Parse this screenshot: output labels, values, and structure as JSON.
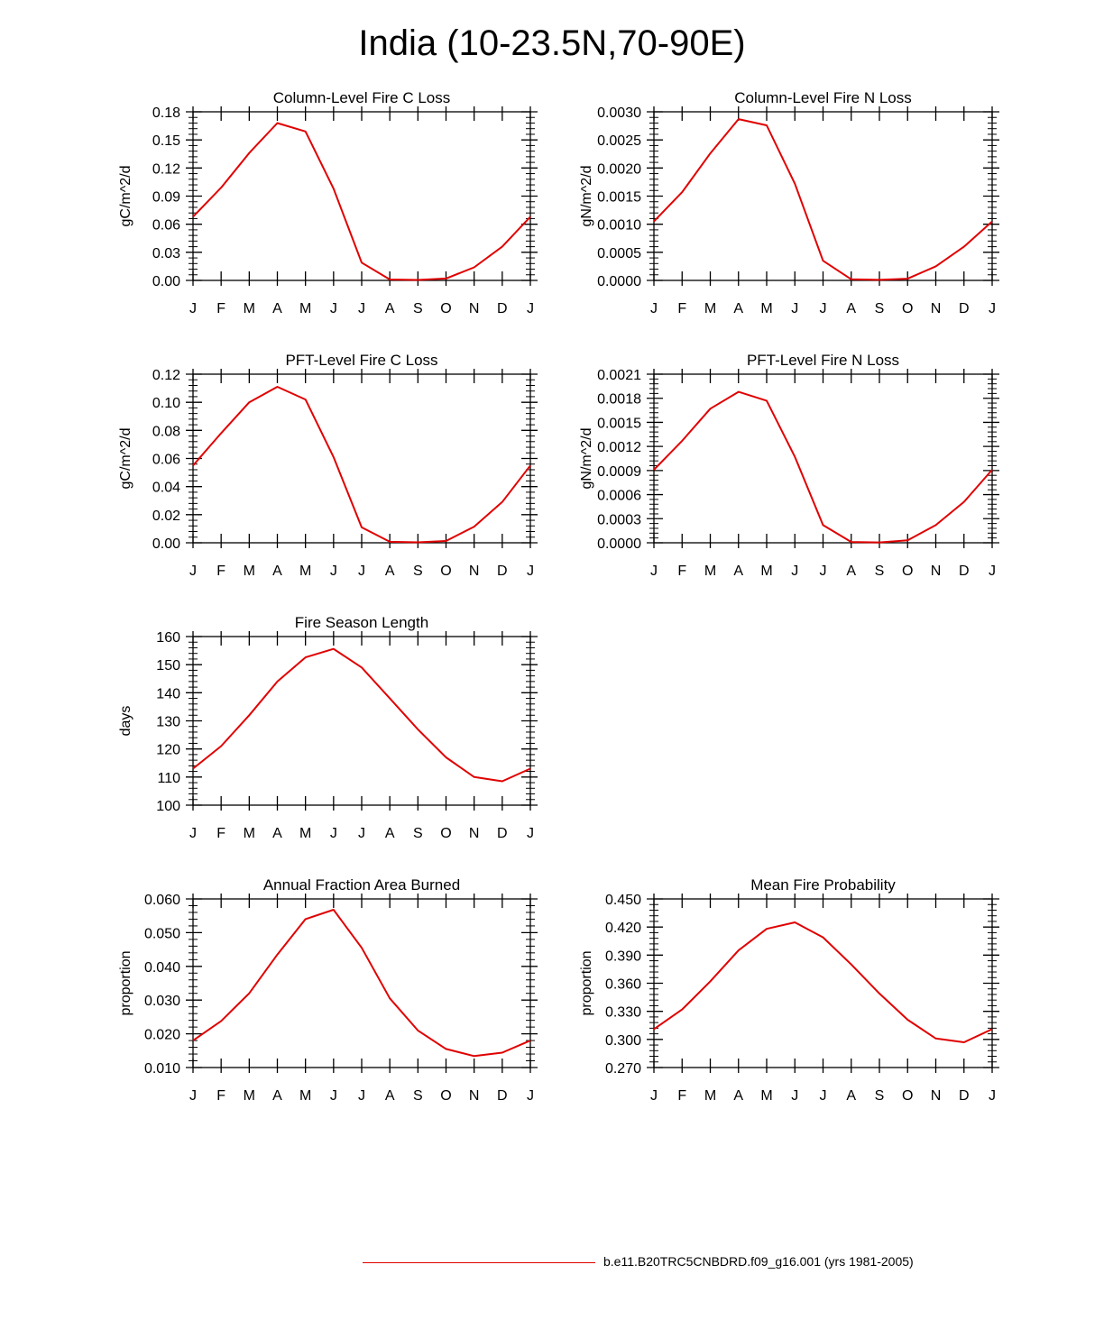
{
  "title": "India (10-23.5N,70-90E)",
  "line_color": "#e00000",
  "legend": {
    "label": "b.e11.B20TRC5CNBDRD.f09_g16.001 (yrs 1981-2005)"
  },
  "chart_data": [
    {
      "type": "line",
      "title": "Column-Level Fire C Loss",
      "ylabel": "gC/m^2/d",
      "xlabel": "",
      "categories": [
        "J",
        "F",
        "M",
        "A",
        "M",
        "J",
        "J",
        "A",
        "S",
        "O",
        "N",
        "D",
        "J"
      ],
      "ylim": [
        0,
        0.18
      ],
      "yticks": [
        "0.00",
        "0.03",
        "0.06",
        "0.09",
        "0.12",
        "0.15",
        "0.18"
      ],
      "series": [
        {
          "name": "b.e11.B20TRC5CNBDRD.f09_g16.001 (yrs 1981-2005)",
          "values": [
            0.068,
            0.099,
            0.136,
            0.168,
            0.159,
            0.098,
            0.019,
            0.001,
            0.0005,
            0.002,
            0.014,
            0.036,
            0.068
          ]
        }
      ]
    },
    {
      "type": "line",
      "title": "Column-Level Fire N Loss",
      "ylabel": "gN/m^2/d",
      "xlabel": "",
      "categories": [
        "J",
        "F",
        "M",
        "A",
        "M",
        "J",
        "J",
        "A",
        "S",
        "O",
        "N",
        "D",
        "J"
      ],
      "ylim": [
        0,
        0.003
      ],
      "yticks": [
        "0.0000",
        "0.0005",
        "0.0010",
        "0.0015",
        "0.0020",
        "0.0025",
        "0.0030"
      ],
      "series": [
        {
          "name": "b.e11.B20TRC5CNBDRD.f09_g16.001 (yrs 1981-2005)",
          "values": [
            0.00105,
            0.00157,
            0.00226,
            0.00287,
            0.00276,
            0.00172,
            0.00035,
            2e-05,
            1e-05,
            3e-05,
            0.00025,
            0.0006,
            0.00105
          ]
        }
      ]
    },
    {
      "type": "line",
      "title": "PFT-Level Fire C Loss",
      "ylabel": "gC/m^2/d",
      "xlabel": "",
      "categories": [
        "J",
        "F",
        "M",
        "A",
        "M",
        "J",
        "J",
        "A",
        "S",
        "O",
        "N",
        "D",
        "J"
      ],
      "ylim": [
        0,
        0.12
      ],
      "yticks": [
        "0.00",
        "0.02",
        "0.04",
        "0.06",
        "0.08",
        "0.10",
        "0.12"
      ],
      "series": [
        {
          "name": "b.e11.B20TRC5CNBDRD.f09_g16.001 (yrs 1981-2005)",
          "values": [
            0.055,
            0.078,
            0.1,
            0.111,
            0.102,
            0.061,
            0.011,
            0.0007,
            0.0003,
            0.0013,
            0.0115,
            0.029,
            0.055
          ]
        }
      ]
    },
    {
      "type": "line",
      "title": "PFT-Level Fire N Loss",
      "ylabel": "gN/m^2/d",
      "xlabel": "",
      "categories": [
        "J",
        "F",
        "M",
        "A",
        "M",
        "J",
        "J",
        "A",
        "S",
        "O",
        "N",
        "D",
        "J"
      ],
      "ylim": [
        0,
        0.0021
      ],
      "yticks": [
        "0.0000",
        "0.0003",
        "0.0006",
        "0.0009",
        "0.0012",
        "0.0015",
        "0.0018",
        "0.0021"
      ],
      "series": [
        {
          "name": "b.e11.B20TRC5CNBDRD.f09_g16.001 (yrs 1981-2005)",
          "values": [
            0.00091,
            0.00127,
            0.00167,
            0.00188,
            0.00177,
            0.00107,
            0.00022,
            1e-05,
            5e-06,
            3e-05,
            0.00022,
            0.00051,
            0.00091
          ]
        }
      ]
    },
    {
      "type": "line",
      "title": "Fire Season Length",
      "ylabel": "days",
      "xlabel": "",
      "categories": [
        "J",
        "F",
        "M",
        "A",
        "M",
        "J",
        "J",
        "A",
        "S",
        "O",
        "N",
        "D",
        "J"
      ],
      "ylim": [
        100,
        160
      ],
      "yticks": [
        "100",
        "110",
        "120",
        "130",
        "140",
        "150",
        "160"
      ],
      "series": [
        {
          "name": "b.e11.B20TRC5CNBDRD.f09_g16.001 (yrs 1981-2005)",
          "values": [
            113,
            121,
            132,
            144,
            152.6,
            155.6,
            149,
            138,
            127,
            117,
            110,
            108.5,
            113
          ]
        }
      ]
    },
    {
      "type": "line",
      "title": "Annual Fraction Area Burned",
      "ylabel": "proportion",
      "xlabel": "",
      "categories": [
        "J",
        "F",
        "M",
        "A",
        "M",
        "J",
        "J",
        "A",
        "S",
        "O",
        "N",
        "D",
        "J"
      ],
      "ylim": [
        0.01,
        0.06
      ],
      "yticks": [
        "0.010",
        "0.020",
        "0.030",
        "0.040",
        "0.050",
        "0.060"
      ],
      "series": [
        {
          "name": "b.e11.B20TRC5CNBDRD.f09_g16.001 (yrs 1981-2005)",
          "values": [
            0.018,
            0.0238,
            0.032,
            0.0435,
            0.054,
            0.0568,
            0.0455,
            0.0305,
            0.021,
            0.0155,
            0.0134,
            0.0144,
            0.018
          ]
        }
      ]
    },
    {
      "type": "line",
      "title": "Mean Fire Probability",
      "ylabel": "proportion",
      "xlabel": "",
      "categories": [
        "J",
        "F",
        "M",
        "A",
        "M",
        "J",
        "J",
        "A",
        "S",
        "O",
        "N",
        "D",
        "J"
      ],
      "ylim": [
        0.27,
        0.45
      ],
      "yticks": [
        "0.270",
        "0.300",
        "0.330",
        "0.360",
        "0.390",
        "0.420",
        "0.450"
      ],
      "series": [
        {
          "name": "b.e11.B20TRC5CNBDRD.f09_g16.001 (yrs 1981-2005)",
          "values": [
            0.311,
            0.332,
            0.362,
            0.395,
            0.418,
            0.425,
            0.409,
            0.38,
            0.349,
            0.321,
            0.301,
            0.297,
            0.311
          ]
        }
      ]
    }
  ]
}
